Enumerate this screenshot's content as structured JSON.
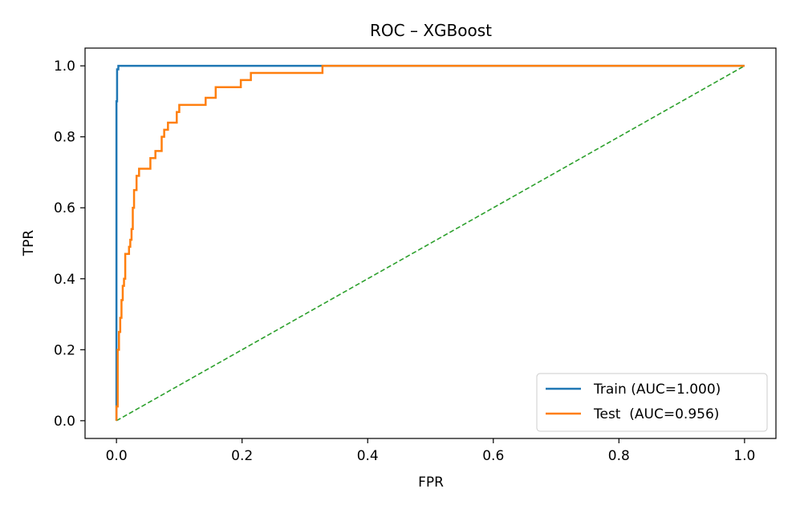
{
  "chart_data": {
    "type": "line",
    "title": "ROC – XGBoost",
    "xlabel": "FPR",
    "ylabel": "TPR",
    "xlim": [
      -0.05,
      1.05
    ],
    "ylim": [
      -0.05,
      1.05
    ],
    "xticks": [
      0.0,
      0.2,
      0.4,
      0.6,
      0.8,
      1.0
    ],
    "yticks": [
      0.0,
      0.2,
      0.4,
      0.6,
      0.8,
      1.0
    ],
    "xtick_labels": [
      "0.0",
      "0.2",
      "0.4",
      "0.6",
      "0.8",
      "1.0"
    ],
    "ytick_labels": [
      "0.0",
      "0.2",
      "0.4",
      "0.6",
      "0.8",
      "1.0"
    ],
    "grid": false,
    "legend_position": "lower-right",
    "series": [
      {
        "name": "Train (AUC=1.000)",
        "color": "#1f77b4",
        "style": "solid",
        "x": [
          0.0,
          0.0,
          0.001,
          0.001,
          0.003,
          0.003,
          1.0
        ],
        "y": [
          0.0,
          0.9,
          0.9,
          0.99,
          0.99,
          1.0,
          1.0
        ]
      },
      {
        "name": "Test  (AUC=0.956)",
        "color": "#ff7f0e",
        "style": "solid",
        "x": [
          0.0,
          0.0,
          0.002,
          0.002,
          0.004,
          0.004,
          0.006,
          0.006,
          0.008,
          0.008,
          0.01,
          0.01,
          0.012,
          0.012,
          0.014,
          0.014,
          0.016,
          0.016,
          0.02,
          0.02,
          0.022,
          0.022,
          0.024,
          0.024,
          0.026,
          0.026,
          0.028,
          0.028,
          0.032,
          0.032,
          0.036,
          0.036,
          0.042,
          0.042,
          0.054,
          0.054,
          0.062,
          0.062,
          0.072,
          0.072,
          0.076,
          0.076,
          0.082,
          0.082,
          0.096,
          0.096,
          0.1,
          0.1,
          0.142,
          0.142,
          0.158,
          0.158,
          0.198,
          0.198,
          0.214,
          0.214,
          0.328,
          0.328,
          1.0
        ],
        "y": [
          0.0,
          0.04,
          0.04,
          0.2,
          0.2,
          0.25,
          0.25,
          0.29,
          0.29,
          0.34,
          0.34,
          0.38,
          0.38,
          0.4,
          0.4,
          0.47,
          0.47,
          0.47,
          0.47,
          0.49,
          0.49,
          0.51,
          0.51,
          0.54,
          0.54,
          0.6,
          0.6,
          0.65,
          0.65,
          0.69,
          0.69,
          0.71,
          0.71,
          0.71,
          0.71,
          0.74,
          0.74,
          0.76,
          0.76,
          0.8,
          0.8,
          0.82,
          0.82,
          0.84,
          0.84,
          0.87,
          0.87,
          0.89,
          0.89,
          0.91,
          0.91,
          0.94,
          0.94,
          0.96,
          0.96,
          0.98,
          0.98,
          1.0,
          1.0
        ]
      },
      {
        "name": "",
        "color": "#2ca02c",
        "style": "dashed",
        "x": [
          0.0,
          1.0
        ],
        "y": [
          0.0,
          1.0
        ]
      }
    ]
  }
}
